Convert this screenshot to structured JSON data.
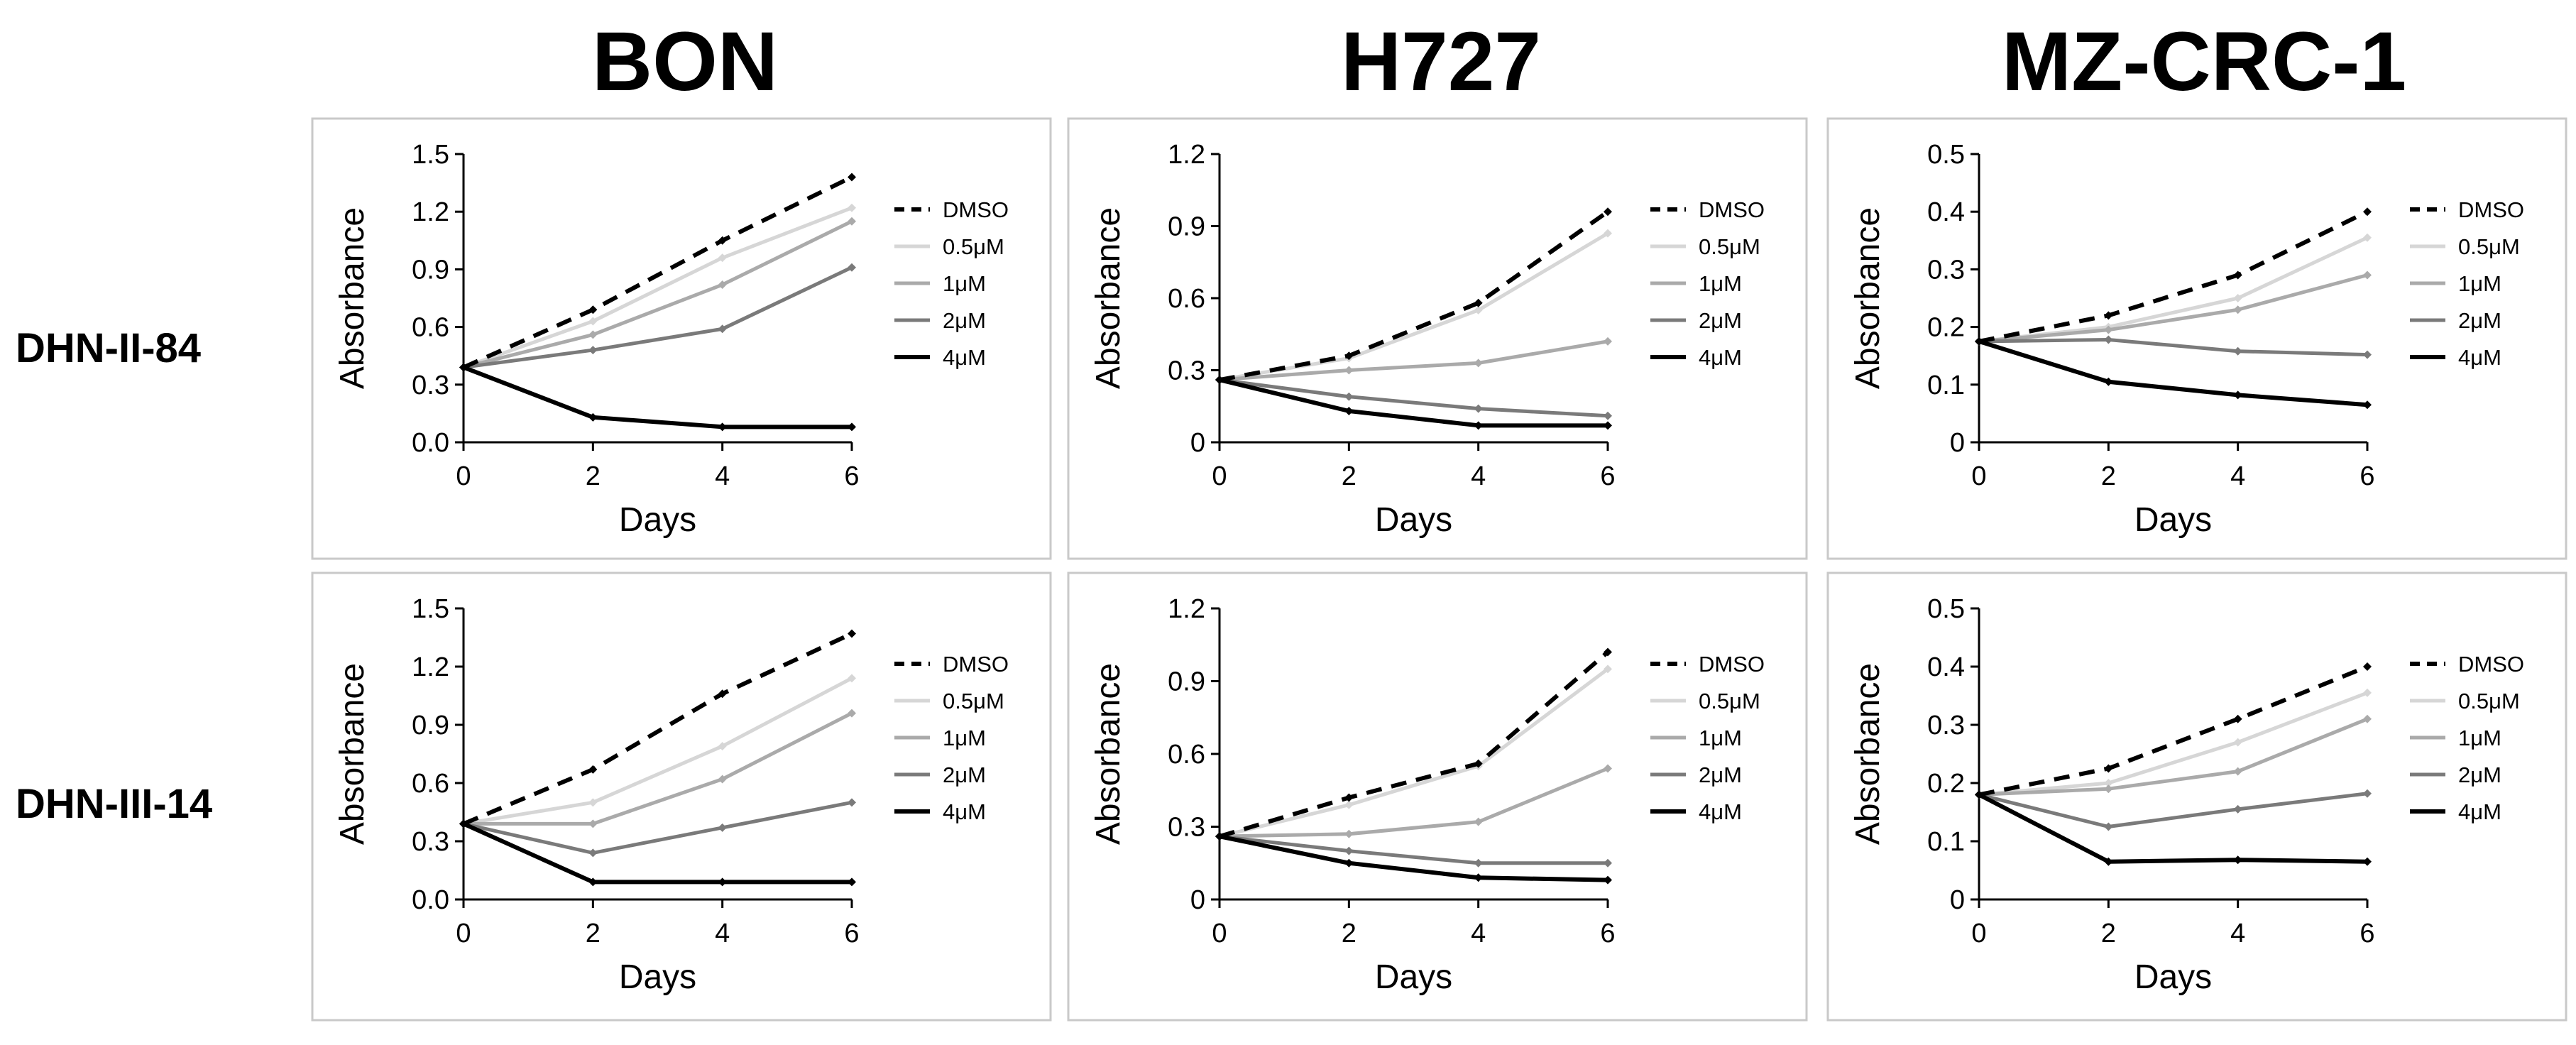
{
  "columns": [
    "BON",
    "H727",
    "MZ-CRC-1"
  ],
  "rows": [
    "DHN-II-84",
    "DHN-III-14"
  ],
  "legend": [
    "DMSO",
    "0.5μM",
    "1μM",
    "2μM",
    "4μM"
  ],
  "series_colors": [
    "#000000",
    "#d6d6d6",
    "#aaaaaa",
    "#7a7a7a",
    "#000000"
  ],
  "chart_data": [
    {
      "type": "line",
      "row": "DHN-II-84",
      "column": "BON",
      "xlabel": "Days",
      "ylabel": "Absorbance",
      "x": [
        0,
        2,
        4,
        6
      ],
      "xlim": [
        0,
        6
      ],
      "ylim": [
        0,
        1.5
      ],
      "xticks": [
        "0",
        "2",
        "4",
        "6"
      ],
      "yticks": [
        "0.0",
        "0.3",
        "0.6",
        "0.9",
        "1.2",
        "1.5"
      ],
      "grid": false,
      "legend_position": "right",
      "series": [
        {
          "name": "DMSO",
          "values": [
            0.39,
            0.69,
            1.05,
            1.38
          ]
        },
        {
          "name": "0.5μM",
          "values": [
            0.39,
            0.63,
            0.96,
            1.22
          ]
        },
        {
          "name": "1μM",
          "values": [
            0.39,
            0.56,
            0.82,
            1.15
          ]
        },
        {
          "name": "2μM",
          "values": [
            0.39,
            0.48,
            0.59,
            0.91
          ]
        },
        {
          "name": "4μM",
          "values": [
            0.39,
            0.13,
            0.08,
            0.08
          ]
        }
      ]
    },
    {
      "type": "line",
      "row": "DHN-II-84",
      "column": "H727",
      "xlabel": "Days",
      "ylabel": "Absorbance",
      "x": [
        0,
        2,
        4,
        6
      ],
      "xlim": [
        0,
        6
      ],
      "ylim": [
        0,
        1.2
      ],
      "xticks": [
        "0",
        "2",
        "4",
        "6"
      ],
      "yticks": [
        "0",
        "0.3",
        "0.6",
        "0.9",
        "1.2"
      ],
      "grid": false,
      "legend_position": "right",
      "series": [
        {
          "name": "DMSO",
          "values": [
            0.26,
            0.36,
            0.58,
            0.96
          ]
        },
        {
          "name": "0.5μM",
          "values": [
            0.26,
            0.35,
            0.55,
            0.87
          ]
        },
        {
          "name": "1μM",
          "values": [
            0.26,
            0.3,
            0.33,
            0.42
          ]
        },
        {
          "name": "2μM",
          "values": [
            0.26,
            0.19,
            0.14,
            0.11
          ]
        },
        {
          "name": "4μM",
          "values": [
            0.26,
            0.13,
            0.07,
            0.07
          ]
        }
      ]
    },
    {
      "type": "line",
      "row": "DHN-II-84",
      "column": "MZ-CRC-1",
      "xlabel": "Days",
      "ylabel": "Absorbance",
      "x": [
        0,
        2,
        4,
        6
      ],
      "xlim": [
        0,
        6
      ],
      "ylim": [
        0,
        0.5
      ],
      "xticks": [
        "0",
        "2",
        "4",
        "6"
      ],
      "yticks": [
        "0",
        "0.1",
        "0.2",
        "0.3",
        "0.4",
        "0.5"
      ],
      "grid": false,
      "legend_position": "right",
      "series": [
        {
          "name": "DMSO",
          "values": [
            0.175,
            0.22,
            0.29,
            0.4
          ]
        },
        {
          "name": "0.5μM",
          "values": [
            0.175,
            0.2,
            0.25,
            0.355
          ]
        },
        {
          "name": "1μM",
          "values": [
            0.175,
            0.195,
            0.23,
            0.29
          ]
        },
        {
          "name": "2μM",
          "values": [
            0.175,
            0.178,
            0.158,
            0.152
          ]
        },
        {
          "name": "4μM",
          "values": [
            0.175,
            0.105,
            0.082,
            0.065
          ]
        }
      ]
    },
    {
      "type": "line",
      "row": "DHN-III-14",
      "column": "BON",
      "xlabel": "Days",
      "ylabel": "Absorbance",
      "x": [
        0,
        2,
        4,
        6
      ],
      "xlim": [
        0,
        6
      ],
      "ylim": [
        0,
        1.5
      ],
      "xticks": [
        "0",
        "2",
        "4",
        "6"
      ],
      "yticks": [
        "0.0",
        "0.3",
        "0.6",
        "0.9",
        "1.2",
        "1.5"
      ],
      "grid": false,
      "legend_position": "right",
      "series": [
        {
          "name": "DMSO",
          "values": [
            0.39,
            0.67,
            1.06,
            1.37
          ]
        },
        {
          "name": "0.5μM",
          "values": [
            0.39,
            0.5,
            0.79,
            1.14
          ]
        },
        {
          "name": "1μM",
          "values": [
            0.39,
            0.39,
            0.62,
            0.96
          ]
        },
        {
          "name": "2μM",
          "values": [
            0.39,
            0.24,
            0.37,
            0.5
          ]
        },
        {
          "name": "4μM",
          "values": [
            0.39,
            0.09,
            0.09,
            0.09
          ]
        }
      ]
    },
    {
      "type": "line",
      "row": "DHN-III-14",
      "column": "H727",
      "xlabel": "Days",
      "ylabel": "Absorbance",
      "x": [
        0,
        2,
        4,
        6
      ],
      "xlim": [
        0,
        6
      ],
      "ylim": [
        0,
        1.2
      ],
      "xticks": [
        "0",
        "2",
        "4",
        "6"
      ],
      "yticks": [
        "0",
        "0.3",
        "0.6",
        "0.9",
        "1.2"
      ],
      "grid": false,
      "legend_position": "right",
      "series": [
        {
          "name": "DMSO",
          "values": [
            0.26,
            0.42,
            0.56,
            1.02
          ]
        },
        {
          "name": "0.5μM",
          "values": [
            0.26,
            0.39,
            0.55,
            0.95
          ]
        },
        {
          "name": "1μM",
          "values": [
            0.26,
            0.27,
            0.32,
            0.54
          ]
        },
        {
          "name": "2μM",
          "values": [
            0.26,
            0.2,
            0.15,
            0.15
          ]
        },
        {
          "name": "4μM",
          "values": [
            0.26,
            0.15,
            0.09,
            0.08
          ]
        }
      ]
    },
    {
      "type": "line",
      "row": "DHN-III-14",
      "column": "MZ-CRC-1",
      "xlabel": "Days",
      "ylabel": "Absorbance",
      "x": [
        0,
        2,
        4,
        6
      ],
      "xlim": [
        0,
        6
      ],
      "ylim": [
        0,
        0.5
      ],
      "xticks": [
        "0",
        "2",
        "4",
        "6"
      ],
      "yticks": [
        "0",
        "0.1",
        "0.2",
        "0.3",
        "0.4",
        "0.5"
      ],
      "grid": false,
      "legend_position": "right",
      "series": [
        {
          "name": "DMSO",
          "values": [
            0.18,
            0.225,
            0.31,
            0.4
          ]
        },
        {
          "name": "0.5μM",
          "values": [
            0.18,
            0.2,
            0.27,
            0.355
          ]
        },
        {
          "name": "1μM",
          "values": [
            0.18,
            0.19,
            0.22,
            0.31
          ]
        },
        {
          "name": "2μM",
          "values": [
            0.18,
            0.125,
            0.155,
            0.182
          ]
        },
        {
          "name": "4μM",
          "values": [
            0.18,
            0.065,
            0.068,
            0.065
          ]
        }
      ]
    }
  ]
}
